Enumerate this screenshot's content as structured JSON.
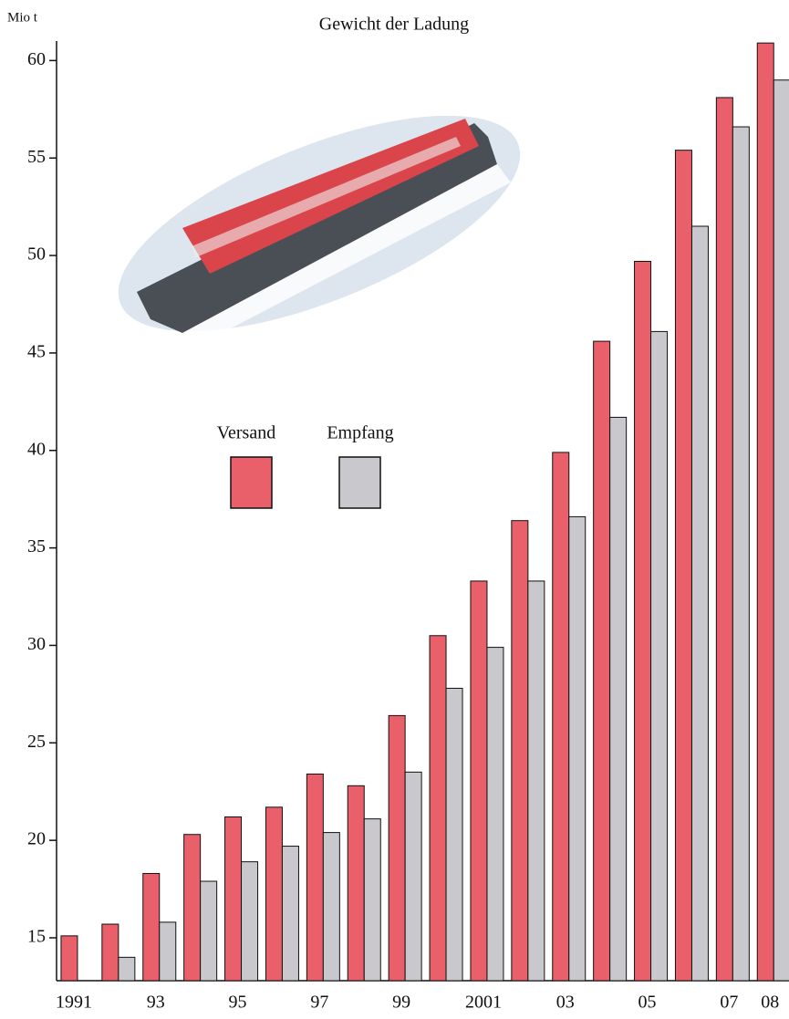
{
  "chart_data": {
    "type": "bar",
    "title": "Gewicht der Ladung",
    "y_label": "Mio t",
    "categories": [
      "1991",
      null,
      "93",
      null,
      "95",
      null,
      "97",
      null,
      "99",
      null,
      "2001",
      null,
      "03",
      null,
      "05",
      null,
      "07",
      "08"
    ],
    "series": [
      {
        "name": "Versand",
        "color": "#e9606a",
        "values": [
          15.1,
          15.7,
          18.3,
          20.3,
          21.2,
          21.7,
          23.4,
          22.8,
          26.4,
          30.5,
          33.3,
          36.4,
          39.9,
          45.6,
          49.7,
          55.4,
          58.1,
          60.9
        ]
      },
      {
        "name": "Empfang",
        "color": "#c9c9cd",
        "values": [
          null,
          14.0,
          15.8,
          17.9,
          18.9,
          19.7,
          20.4,
          21.1,
          23.5,
          27.8,
          29.9,
          33.3,
          36.6,
          41.7,
          46.1,
          51.5,
          56.6,
          59.0
        ]
      }
    ],
    "ylim": [
      12.8,
      61
    ],
    "yticks": [
      15,
      20,
      25,
      30,
      35,
      40,
      45,
      50,
      55,
      60
    ]
  }
}
